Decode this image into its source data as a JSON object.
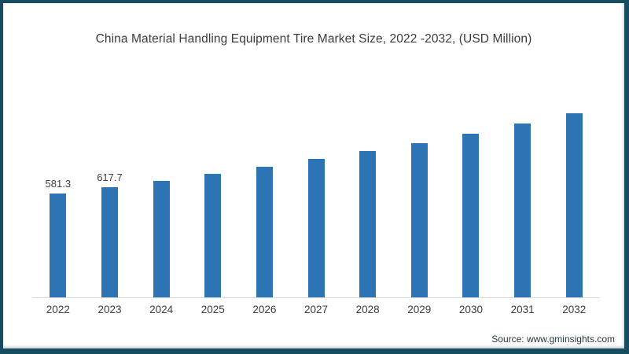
{
  "title": "China Material Handling Equipment Tire Market Size, 2022 -2032, (USD Million)",
  "source": {
    "text": "Source: www.gminsights.com"
  },
  "colors": {
    "bar": "#2d74b4",
    "frame_border": "#164e5f",
    "axis_line": "#d8d8d8",
    "text": "#3a3a3a"
  },
  "chart_data": {
    "type": "bar",
    "title": "China Material Handling Equipment Tire Market Size, 2022 -2032, (USD Million)",
    "categories": [
      "2022",
      "2023",
      "2024",
      "2025",
      "2026",
      "2027",
      "2028",
      "2029",
      "2030",
      "2031",
      "2032"
    ],
    "values": [
      581.3,
      617.7,
      655,
      694,
      734,
      776,
      818,
      865,
      915,
      972,
      1030
    ],
    "data_labels": [
      "581.3",
      "617.7",
      "",
      "",
      "",
      "",
      "",
      "",
      "",
      "",
      ""
    ],
    "xlabel": "",
    "ylabel": "",
    "ylim": [
      0,
      1052
    ],
    "grid": false,
    "legend": "none",
    "y_axis_visible": false,
    "note": "values for 2024-2032 estimated from bar heights; only 2022 and 2023 carry printed data labels"
  }
}
